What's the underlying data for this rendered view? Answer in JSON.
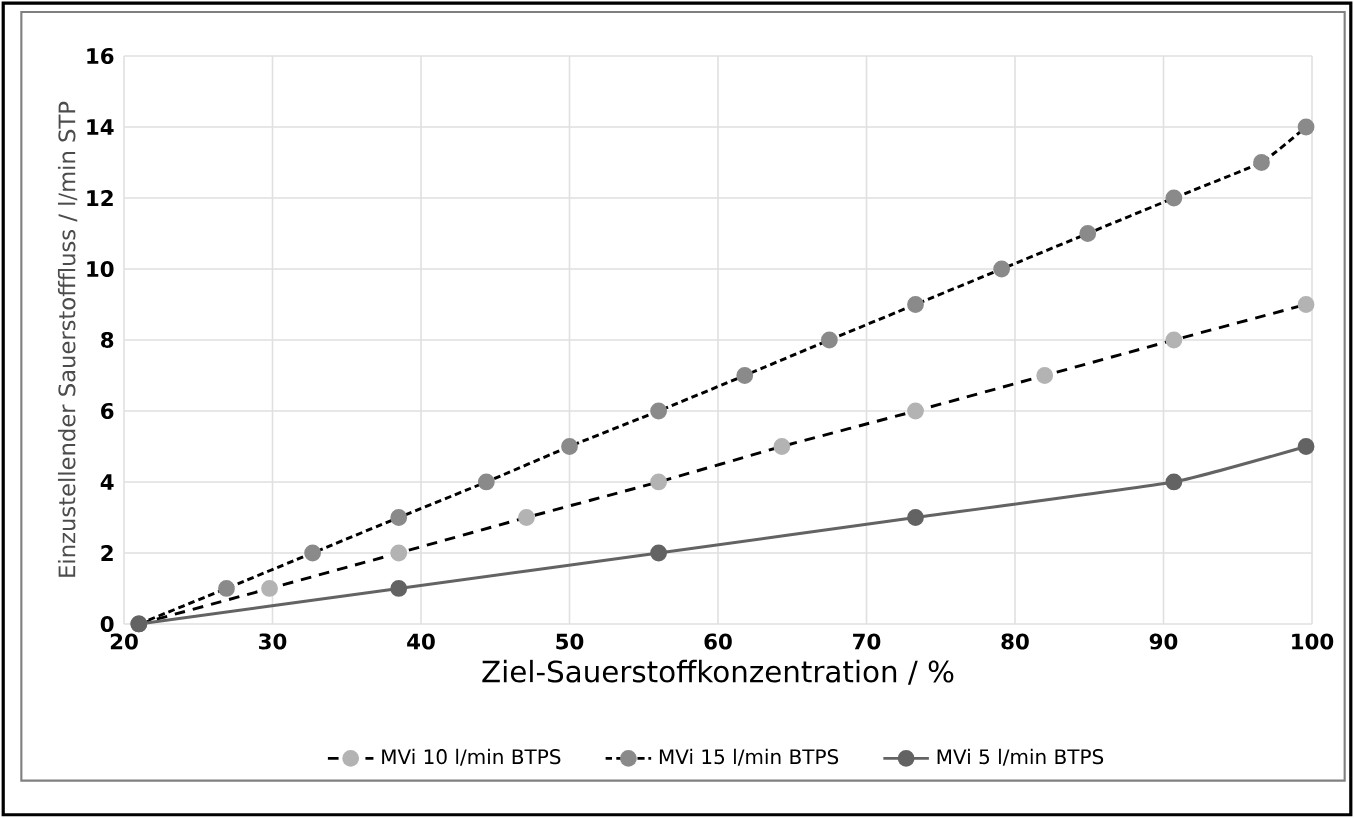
{
  "chart_data": {
    "type": "line",
    "xlabel": "Ziel-Sauerstoffkonzentration / %",
    "ylabel": "Einzustellender  Sauerstofffluss / l/min STP",
    "xlim": [
      20,
      100
    ],
    "xticks": [
      20,
      30,
      40,
      50,
      60,
      70,
      80,
      90,
      100
    ],
    "ylim": [
      0,
      16
    ],
    "yticks": [
      0,
      2,
      4,
      6,
      8,
      10,
      12,
      14,
      16
    ],
    "grid": true,
    "legend": "bottom",
    "marker": "circle",
    "series": [
      {
        "name": "MVi 10 l/min BTPS",
        "color": "#b3b3b3",
        "line_style": "dashed",
        "x": [
          21,
          29.8,
          38.5,
          47.1,
          56,
          64.3,
          73.3,
          82,
          90.7,
          99.6
        ],
        "values": [
          0,
          1,
          2,
          3,
          4,
          5,
          6,
          7,
          8,
          9
        ]
      },
      {
        "name": "MVi 15 l/min BTPS",
        "color": "#8a8a8a",
        "line_style": "dotted",
        "x": [
          21,
          26.9,
          32.7,
          38.5,
          44.4,
          50,
          56,
          61.8,
          67.5,
          73.3,
          79.1,
          84.9,
          90.7,
          96.6,
          99.6
        ],
        "values": [
          0,
          1,
          2,
          3,
          4,
          5,
          6,
          7,
          8,
          9,
          10,
          11,
          12,
          13,
          14
        ]
      },
      {
        "name": "MVi 5 l/min BTPS",
        "color": "#636363",
        "line_style": "solid",
        "x": [
          21,
          38.5,
          56,
          73.3,
          90.7,
          99.6
        ],
        "values": [
          0,
          1,
          2,
          3,
          4,
          5
        ]
      }
    ]
  }
}
